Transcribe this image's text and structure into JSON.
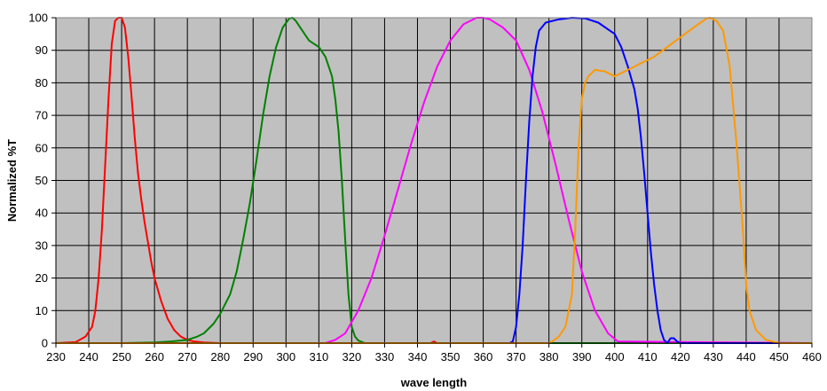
{
  "chart_data": {
    "type": "line",
    "title": "",
    "xlabel": "wave length",
    "ylabel": "Normalized %T",
    "xlim": [
      230,
      460
    ],
    "ylim": [
      0,
      100
    ],
    "xticks": [
      230,
      240,
      250,
      260,
      270,
      280,
      290,
      300,
      310,
      320,
      330,
      340,
      350,
      360,
      370,
      380,
      390,
      400,
      410,
      420,
      430,
      440,
      450,
      460
    ],
    "yticks": [
      0,
      10,
      20,
      30,
      40,
      50,
      60,
      70,
      80,
      90,
      100
    ],
    "grid": true,
    "legend": "none",
    "plot_background": "#c0c0c0",
    "series": [
      {
        "color": "#ff0000",
        "x": [
          230,
          236,
          239,
          241,
          242,
          243,
          244,
          245,
          246,
          247,
          248,
          249,
          250,
          251,
          252,
          253,
          254,
          255,
          256,
          257,
          258,
          259,
          260,
          262,
          264,
          266,
          268,
          270,
          272,
          275,
          280,
          300,
          320,
          340,
          344,
          345,
          346,
          360,
          380,
          400,
          420,
          440,
          460
        ],
        "y": [
          0,
          0.3,
          2,
          5,
          10,
          20,
          35,
          55,
          75,
          92,
          99,
          100,
          100,
          97,
          88,
          76,
          63,
          52,
          44,
          37,
          31,
          25,
          20,
          13,
          7.5,
          4,
          2,
          1,
          0.5,
          0.2,
          0,
          0,
          0,
          0,
          0,
          0.5,
          0,
          0,
          0,
          0,
          0,
          0,
          0
        ]
      },
      {
        "color": "#008000",
        "x": [
          230,
          250,
          260,
          265,
          270,
          273,
          275,
          278,
          280,
          283,
          285,
          287,
          289,
          291,
          293,
          295,
          297,
          299,
          301,
          302,
          303,
          305,
          307,
          310,
          312,
          314,
          315,
          316,
          317,
          318,
          319,
          320,
          321,
          322,
          324,
          330,
          400,
          460
        ],
        "y": [
          0,
          0,
          0.2,
          0.5,
          1,
          2,
          3,
          6,
          9,
          15,
          22,
          32,
          43,
          56,
          70,
          82,
          91,
          97,
          99.8,
          100,
          99,
          96,
          93,
          91,
          88,
          82,
          75,
          65,
          50,
          32,
          15,
          5,
          2,
          0.8,
          0,
          0,
          0,
          0
        ]
      },
      {
        "color": "#ff00ff",
        "x": [
          230,
          312,
          315,
          318,
          322,
          326,
          330,
          334,
          338,
          342,
          346,
          350,
          354,
          358,
          360,
          362,
          366,
          370,
          374,
          378,
          382,
          386,
          390,
          394,
          398,
          401,
          460
        ],
        "y": [
          0,
          0,
          1,
          3,
          10,
          20,
          33,
          47,
          61,
          74,
          85,
          93,
          98,
          100,
          100,
          99.5,
          97,
          93,
          84,
          71,
          55,
          38,
          22,
          10,
          3,
          0.5,
          0
        ]
      },
      {
        "color": "#0000ff",
        "x": [
          230,
          368,
          369,
          370,
          371,
          372,
          373,
          374,
          375,
          376,
          377,
          379,
          383,
          387,
          391,
          395,
          400,
          402,
          404,
          406,
          407,
          408,
          409,
          410,
          411,
          412,
          413,
          414,
          415,
          416,
          417,
          418,
          419,
          420,
          460
        ],
        "y": [
          0,
          0,
          0.5,
          5,
          15,
          30,
          50,
          68,
          82,
          91,
          96,
          98.5,
          99.5,
          100,
          99.8,
          98.5,
          95,
          91,
          85,
          78,
          72,
          63,
          52,
          40,
          28,
          18,
          10,
          4,
          1,
          0,
          1.5,
          1.5,
          0.5,
          0,
          0
        ]
      },
      {
        "color": "#ff9900",
        "x": [
          230,
          380,
          381,
          383,
          385,
          387,
          388,
          389,
          390,
          391,
          392,
          394,
          397,
          400,
          404,
          408,
          412,
          416,
          420,
          424,
          428,
          429,
          431,
          433,
          435,
          437,
          439,
          440,
          441,
          443,
          446,
          450,
          460
        ],
        "y": [
          0,
          0,
          0.5,
          2,
          5,
          15,
          35,
          60,
          75,
          80,
          82,
          84,
          83.5,
          82,
          84,
          86,
          88,
          91,
          94,
          97,
          99.8,
          100,
          99,
          96,
          85,
          62,
          35,
          18,
          10,
          4,
          1,
          0,
          0
        ]
      }
    ]
  }
}
